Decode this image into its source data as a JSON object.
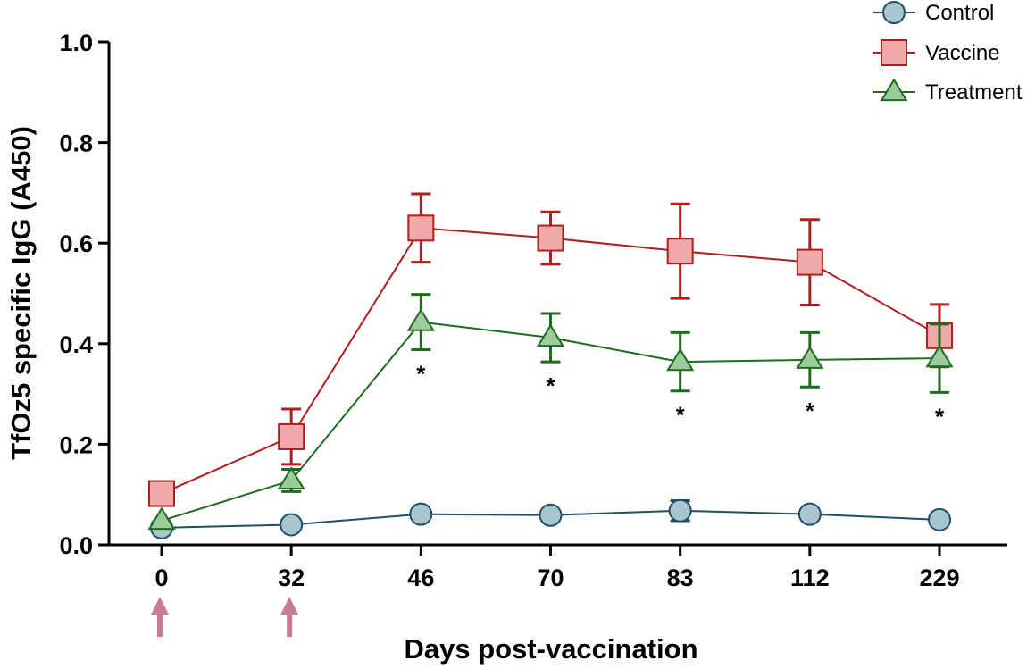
{
  "chart_data": {
    "type": "line",
    "title": "",
    "xlabel": "Days post-vaccination",
    "ylabel": "TfOz5 specific IgG (A450)",
    "categories": [
      "0",
      "32",
      "46",
      "70",
      "83",
      "112",
      "229"
    ],
    "ylim": [
      0,
      1.0
    ],
    "yticks": [
      "0.0",
      "0.2",
      "0.4",
      "0.6",
      "0.8",
      "1.0"
    ],
    "grid": false,
    "legend_position": "top-right",
    "series": [
      {
        "name": "Control",
        "marker": "circle",
        "line_color": "#1f4e66",
        "fill_color": "#a9c6cf",
        "values": [
          0.034,
          0.04,
          0.061,
          0.059,
          0.068,
          0.061,
          0.05
        ],
        "errors": [
          0.005,
          0.005,
          0.006,
          0.006,
          0.02,
          0.006,
          0.006
        ]
      },
      {
        "name": "Vaccine",
        "marker": "square",
        "line_color": "#b01e1e",
        "fill_color": "#f0a9a9",
        "values": [
          0.102,
          0.215,
          0.63,
          0.61,
          0.584,
          0.562,
          0.416
        ],
        "errors": [
          0.02,
          0.055,
          0.068,
          0.052,
          0.094,
          0.085,
          0.062
        ]
      },
      {
        "name": "Treatment",
        "marker": "triangle",
        "line_color": "#1e6b1e",
        "fill_color": "#9ccc9c",
        "values": [
          0.048,
          0.128,
          0.443,
          0.412,
          0.364,
          0.368,
          0.371
        ],
        "errors": [
          0.004,
          0.022,
          0.055,
          0.048,
          0.058,
          0.054,
          0.068
        ]
      }
    ],
    "significance": [
      {
        "category": "46",
        "label": "*"
      },
      {
        "category": "70",
        "label": "*"
      },
      {
        "category": "83",
        "label": "*"
      },
      {
        "category": "112",
        "label": "*"
      },
      {
        "category": "229",
        "label": "*"
      }
    ],
    "vaccination_arrows": [
      "0",
      "32"
    ],
    "arrow_color": "#c87a97"
  }
}
